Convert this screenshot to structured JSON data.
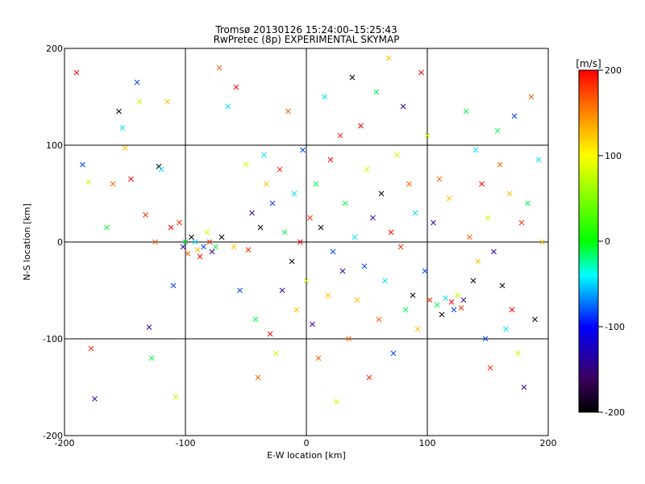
{
  "chart_data": {
    "type": "scatter",
    "title_line1": "Tromsø 20130126 15:24:00–15:25:43",
    "title_line2": "RwPretec (8p) EXPERIMENTAL SKYMAP",
    "xlabel": "E-W location [km]",
    "ylabel": "N-S location [km]",
    "xlim": [
      -200,
      200
    ],
    "ylim": [
      -200,
      200
    ],
    "xticks": [
      -200,
      -100,
      0,
      100,
      200
    ],
    "yticks": [
      -200,
      -100,
      0,
      100,
      200
    ],
    "grid": true,
    "colorbar": {
      "label": "[m/s]",
      "min": -200,
      "max": 200,
      "ticks": [
        200,
        100,
        0,
        -100,
        -200
      ]
    },
    "series": [
      {
        "marker": "x",
        "points": [
          [
            -190,
            175
          ],
          [
            -185,
            80
          ],
          [
            -180,
            62
          ],
          [
            -178,
            -110
          ],
          [
            -175,
            -162
          ],
          [
            -165,
            15
          ],
          [
            -160,
            60
          ],
          [
            -155,
            135
          ],
          [
            -152,
            118
          ],
          [
            -150,
            97
          ],
          [
            -145,
            65
          ],
          [
            -140,
            165
          ],
          [
            -138,
            145
          ],
          [
            -133,
            28
          ],
          [
            -130,
            -88
          ],
          [
            -128,
            -120
          ],
          [
            -125,
            0
          ],
          [
            -122,
            78
          ],
          [
            -120,
            75
          ],
          [
            -115,
            145
          ],
          [
            -112,
            15
          ],
          [
            -110,
            -45
          ],
          [
            -108,
            -160
          ],
          [
            -105,
            20
          ],
          [
            -102,
            -5
          ],
          [
            -100,
            0
          ],
          [
            -98,
            -12
          ],
          [
            -95,
            5
          ],
          [
            -92,
            0
          ],
          [
            -90,
            -8
          ],
          [
            -88,
            -15
          ],
          [
            -85,
            -5
          ],
          [
            -82,
            10
          ],
          [
            -80,
            0
          ],
          [
            -78,
            -10
          ],
          [
            -75,
            -5
          ],
          [
            -72,
            180
          ],
          [
            -70,
            5
          ],
          [
            -65,
            140
          ],
          [
            -60,
            -5
          ],
          [
            -58,
            160
          ],
          [
            -55,
            -50
          ],
          [
            -50,
            80
          ],
          [
            -48,
            -8
          ],
          [
            -45,
            30
          ],
          [
            -42,
            -80
          ],
          [
            -40,
            -140
          ],
          [
            -38,
            15
          ],
          [
            -35,
            90
          ],
          [
            -33,
            60
          ],
          [
            -30,
            -95
          ],
          [
            -28,
            40
          ],
          [
            -25,
            -115
          ],
          [
            -22,
            75
          ],
          [
            -20,
            -50
          ],
          [
            -18,
            10
          ],
          [
            -15,
            135
          ],
          [
            -12,
            -20
          ],
          [
            -10,
            50
          ],
          [
            -8,
            -70
          ],
          [
            -5,
            0
          ],
          [
            -3,
            95
          ],
          [
            0,
            -40
          ],
          [
            3,
            25
          ],
          [
            5,
            -85
          ],
          [
            8,
            60
          ],
          [
            10,
            -120
          ],
          [
            12,
            15
          ],
          [
            15,
            150
          ],
          [
            18,
            -55
          ],
          [
            20,
            85
          ],
          [
            22,
            -10
          ],
          [
            25,
            -165
          ],
          [
            28,
            110
          ],
          [
            30,
            -30
          ],
          [
            32,
            40
          ],
          [
            35,
            -100
          ],
          [
            38,
            170
          ],
          [
            40,
            5
          ],
          [
            42,
            -60
          ],
          [
            45,
            120
          ],
          [
            48,
            -25
          ],
          [
            50,
            75
          ],
          [
            52,
            -140
          ],
          [
            55,
            25
          ],
          [
            58,
            155
          ],
          [
            60,
            -80
          ],
          [
            62,
            50
          ],
          [
            65,
            -40
          ],
          [
            68,
            190
          ],
          [
            70,
            10
          ],
          [
            72,
            -115
          ],
          [
            75,
            90
          ],
          [
            78,
            -5
          ],
          [
            80,
            140
          ],
          [
            82,
            -70
          ],
          [
            85,
            60
          ],
          [
            88,
            -55
          ],
          [
            90,
            30
          ],
          [
            92,
            -90
          ],
          [
            95,
            175
          ],
          [
            98,
            -30
          ],
          [
            100,
            110
          ],
          [
            102,
            -60
          ],
          [
            105,
            20
          ],
          [
            108,
            -65
          ],
          [
            110,
            65
          ],
          [
            112,
            -75
          ],
          [
            115,
            -58
          ],
          [
            118,
            45
          ],
          [
            120,
            -62
          ],
          [
            122,
            -70
          ],
          [
            125,
            -55
          ],
          [
            128,
            -68
          ],
          [
            130,
            -60
          ],
          [
            132,
            135
          ],
          [
            135,
            5
          ],
          [
            138,
            -40
          ],
          [
            140,
            95
          ],
          [
            142,
            -20
          ],
          [
            145,
            60
          ],
          [
            148,
            -100
          ],
          [
            150,
            25
          ],
          [
            152,
            -130
          ],
          [
            155,
            -10
          ],
          [
            158,
            115
          ],
          [
            160,
            80
          ],
          [
            162,
            -45
          ],
          [
            165,
            -90
          ],
          [
            168,
            50
          ],
          [
            170,
            -70
          ],
          [
            172,
            130
          ],
          [
            175,
            -115
          ],
          [
            178,
            20
          ],
          [
            180,
            -150
          ],
          [
            183,
            40
          ],
          [
            186,
            150
          ],
          [
            189,
            -80
          ],
          [
            192,
            85
          ],
          [
            195,
            0
          ]
        ]
      }
    ]
  }
}
